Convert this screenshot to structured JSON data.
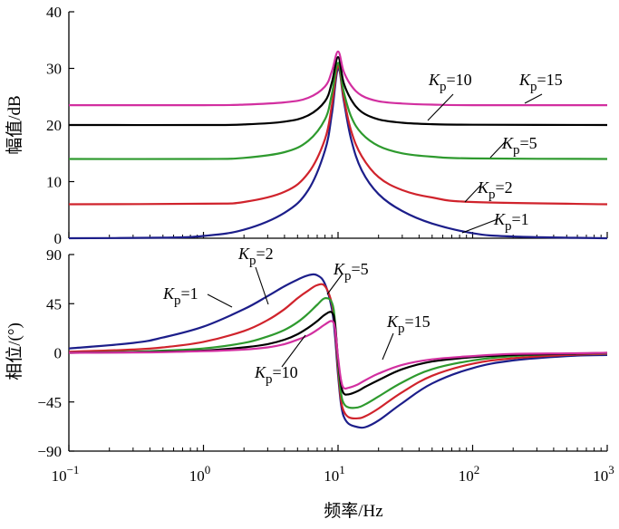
{
  "chart_data": [
    {
      "type": "line",
      "ylabel": "幅值/dB",
      "ylim": [
        0,
        40
      ],
      "yticks": [
        "0",
        "10",
        "20",
        "30",
        "40"
      ],
      "x_scale": "log",
      "xlim": [
        0.1,
        1000
      ],
      "series": [
        {
          "name": "Kp=1",
          "color": "#1c1e8a",
          "x": [
            0.1,
            0.5,
            1,
            2,
            4,
            6,
            8,
            9,
            10,
            11,
            12.5,
            15,
            20,
            30,
            50,
            100,
            200,
            1000
          ],
          "values": [
            0.0,
            0.1,
            0.4,
            1.5,
            4.5,
            8.5,
            15.5,
            22.0,
            30.0,
            24.5,
            17.5,
            12.0,
            7.8,
            4.8,
            2.6,
            0.9,
            0.3,
            0.0
          ]
        },
        {
          "name": "Kp=2",
          "color": "#d0232c",
          "x": [
            0.1,
            1,
            2,
            4,
            6,
            8,
            9,
            10,
            11,
            12.5,
            15,
            20,
            30,
            50,
            100,
            1000
          ],
          "values": [
            6.0,
            6.1,
            6.4,
            8.2,
            11.5,
            17.5,
            23.5,
            30.5,
            25.0,
            19.0,
            14.5,
            10.8,
            8.5,
            7.2,
            6.4,
            6.0
          ]
        },
        {
          "name": "Kp=5",
          "color": "#2e9a2e",
          "x": [
            0.1,
            1,
            2,
            4,
            6,
            8,
            9,
            10,
            11,
            12.5,
            15,
            20,
            30,
            50,
            100,
            1000
          ],
          "values": [
            14.0,
            14.0,
            14.2,
            15.2,
            17.2,
            21.0,
            25.5,
            31.0,
            26.0,
            21.5,
            18.5,
            16.3,
            15.0,
            14.4,
            14.1,
            14.0
          ]
        },
        {
          "name": "Kp=10",
          "color": "#000000",
          "x": [
            0.1,
            1,
            2,
            4,
            6,
            8,
            9,
            10,
            11,
            12.5,
            15,
            20,
            30,
            50,
            100,
            1000
          ],
          "values": [
            20.0,
            20.0,
            20.1,
            20.6,
            21.7,
            24.2,
            27.5,
            32.0,
            27.5,
            24.5,
            22.3,
            21.0,
            20.4,
            20.15,
            20.05,
            20.0
          ]
        },
        {
          "name": "Kp=15",
          "color": "#d22fa0",
          "x": [
            0.1,
            1,
            2,
            4,
            6,
            8,
            9,
            10,
            11,
            12.5,
            15,
            20,
            30,
            50,
            100,
            1000
          ],
          "values": [
            23.5,
            23.5,
            23.6,
            24.0,
            24.8,
            26.8,
            29.5,
            33.0,
            29.5,
            27.0,
            25.2,
            24.2,
            23.8,
            23.6,
            23.5,
            23.5
          ]
        }
      ],
      "annotations": [
        {
          "label": "Kp=10",
          "series": "Kp=10"
        },
        {
          "label": "Kp=15",
          "series": "Kp=15"
        },
        {
          "label": "Kp=5",
          "series": "Kp=5"
        },
        {
          "label": "Kp=2",
          "series": "Kp=2"
        },
        {
          "label": "Kp=1",
          "series": "Kp=1"
        }
      ]
    },
    {
      "type": "line",
      "ylabel": "相位/(°)",
      "ylim": [
        -90,
        90
      ],
      "yticks": [
        "-90",
        "-45",
        "0",
        "45",
        "90"
      ],
      "x_scale": "log",
      "xlim": [
        0.1,
        1000
      ],
      "xticks": [
        {
          "base": "10",
          "exp": "−1"
        },
        {
          "base": "10",
          "exp": "0"
        },
        {
          "base": "10",
          "exp": "1"
        },
        {
          "base": "10",
          "exp": "2"
        },
        {
          "base": "10",
          "exp": "3"
        }
      ],
      "xlabel": "频率/Hz",
      "series": [
        {
          "name": "Kp=1",
          "color": "#1c1e8a",
          "x": [
            0.1,
            0.3,
            0.5,
            1,
            2,
            3,
            4,
            5,
            6,
            7,
            8,
            9,
            9.5,
            10,
            10.5,
            11,
            12,
            14,
            16,
            20,
            30,
            50,
            100,
            200,
            500,
            1000
          ],
          "values": [
            4,
            9,
            14,
            24,
            40,
            52,
            61,
            67,
            71,
            71,
            63,
            40,
            15,
            -20,
            -46,
            -58,
            -65,
            -68,
            -68,
            -62,
            -46,
            -28,
            -14,
            -7,
            -3,
            -2
          ]
        },
        {
          "name": "Kp=2",
          "color": "#d0232c",
          "x": [
            0.1,
            0.3,
            0.5,
            1,
            2,
            3,
            4,
            5,
            6,
            7,
            8,
            9,
            9.5,
            10,
            10.5,
            11,
            12,
            14,
            16,
            20,
            30,
            50,
            100,
            200,
            500,
            1000
          ],
          "values": [
            1,
            3,
            5,
            10,
            20,
            30,
            40,
            50,
            57,
            62,
            61,
            45,
            22,
            -15,
            -42,
            -53,
            -59,
            -60,
            -58,
            -51,
            -36,
            -21,
            -10,
            -5,
            -2,
            -1
          ]
        },
        {
          "name": "Kp=5",
          "color": "#2e9a2e",
          "x": [
            0.1,
            0.3,
            0.5,
            1,
            2,
            3,
            4,
            5,
            6,
            7,
            8,
            9,
            9.5,
            10,
            10.5,
            11,
            12,
            14,
            16,
            20,
            30,
            50,
            100,
            200,
            500,
            1000
          ],
          "values": [
            0,
            1,
            2,
            4,
            9,
            15,
            21,
            28,
            36,
            44,
            50,
            46,
            28,
            -10,
            -36,
            -46,
            -50,
            -50,
            -47,
            -40,
            -27,
            -15,
            -7,
            -3,
            -1,
            -0.5
          ]
        },
        {
          "name": "Kp=10",
          "color": "#000000",
          "x": [
            0.1,
            0.3,
            0.5,
            1,
            2,
            3,
            4,
            5,
            6,
            7,
            8,
            9,
            9.5,
            10,
            10.5,
            11,
            12,
            14,
            16,
            20,
            30,
            50,
            100,
            200,
            500,
            1000
          ],
          "values": [
            0,
            0.5,
            1,
            2,
            5,
            8,
            12,
            17,
            23,
            29,
            35,
            37,
            26,
            -6,
            -28,
            -37,
            -38,
            -35,
            -31,
            -25,
            -15,
            -8,
            -4,
            -2,
            -1,
            0
          ]
        },
        {
          "name": "Kp=15",
          "color": "#d22fa0",
          "x": [
            0.1,
            0.3,
            0.5,
            1,
            2,
            3,
            4,
            5,
            6,
            7,
            8,
            9,
            9.5,
            10,
            10.5,
            11,
            12,
            14,
            16,
            20,
            30,
            50,
            100,
            200,
            500,
            1000
          ],
          "values": [
            0,
            0.3,
            0.6,
            1.5,
            3,
            5,
            8,
            12,
            16,
            21,
            26,
            29,
            22,
            -4,
            -24,
            -32,
            -32,
            -29,
            -25,
            -19,
            -11,
            -6,
            -3,
            -1,
            -0.5,
            0
          ]
        }
      ],
      "annotations": [
        {
          "label": "Kp=2",
          "series": "Kp=2"
        },
        {
          "label": "Kp=1",
          "series": "Kp=1"
        },
        {
          "label": "Kp=5",
          "series": "Kp=5"
        },
        {
          "label": "Kp=15",
          "series": "Kp=15"
        },
        {
          "label": "Kp=10",
          "series": "Kp=10"
        }
      ]
    }
  ]
}
